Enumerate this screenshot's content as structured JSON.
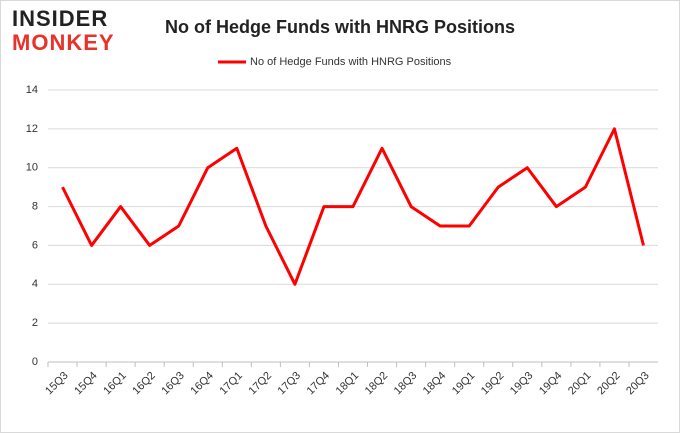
{
  "logo": {
    "line1": "INSIDER",
    "line2": "MONKEY"
  },
  "chart_data": {
    "type": "line",
    "title": "No of Hedge Funds with HNRG Positions",
    "categories": [
      "15Q3",
      "15Q4",
      "16Q1",
      "16Q2",
      "16Q3",
      "16Q4",
      "17Q1",
      "17Q2",
      "17Q3",
      "17Q4",
      "18Q1",
      "18Q2",
      "18Q3",
      "18Q4",
      "19Q1",
      "19Q2",
      "19Q3",
      "19Q4",
      "20Q1",
      "20Q2",
      "20Q3"
    ],
    "series": [
      {
        "name": "No of Hedge Funds with HNRG  Positions",
        "color": "#ff0000",
        "values": [
          9,
          6,
          8,
          6,
          7,
          10,
          11,
          7,
          4,
          8,
          8,
          11,
          8,
          7,
          7,
          9,
          10,
          8,
          9,
          12,
          6
        ]
      }
    ],
    "ylim": [
      0,
      14
    ],
    "yticks": [
      0,
      2,
      4,
      6,
      8,
      10,
      12,
      14
    ],
    "grid": true,
    "legend": "top"
  }
}
